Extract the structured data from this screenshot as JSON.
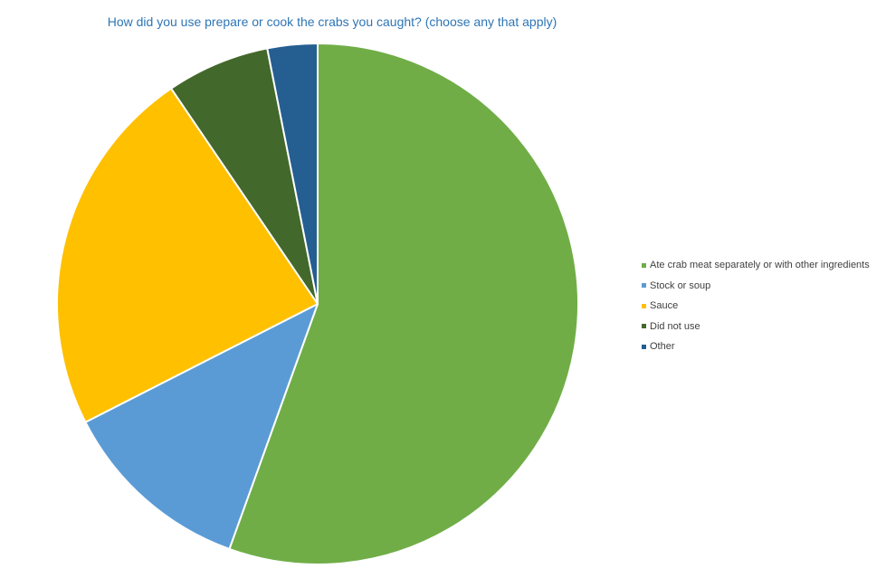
{
  "chart_data": {
    "type": "pie",
    "title": "How did you use prepare or cook the crabs you caught? (choose any that apply)",
    "start_angle_deg": 0,
    "direction": "clockwise",
    "legend_position": "right",
    "slices": [
      {
        "label": "Ate crab meat separately or with other ingredients",
        "value": 55.5,
        "color": "#70ad47"
      },
      {
        "label": "Stock or soup",
        "value": 12.0,
        "color": "#5b9bd5"
      },
      {
        "label": "Sauce",
        "value": 23.0,
        "color": "#ffc000"
      },
      {
        "label": "Did not use",
        "value": 6.4,
        "color": "#43682b"
      },
      {
        "label": "Other",
        "value": 3.1,
        "color": "#255e91"
      }
    ]
  }
}
